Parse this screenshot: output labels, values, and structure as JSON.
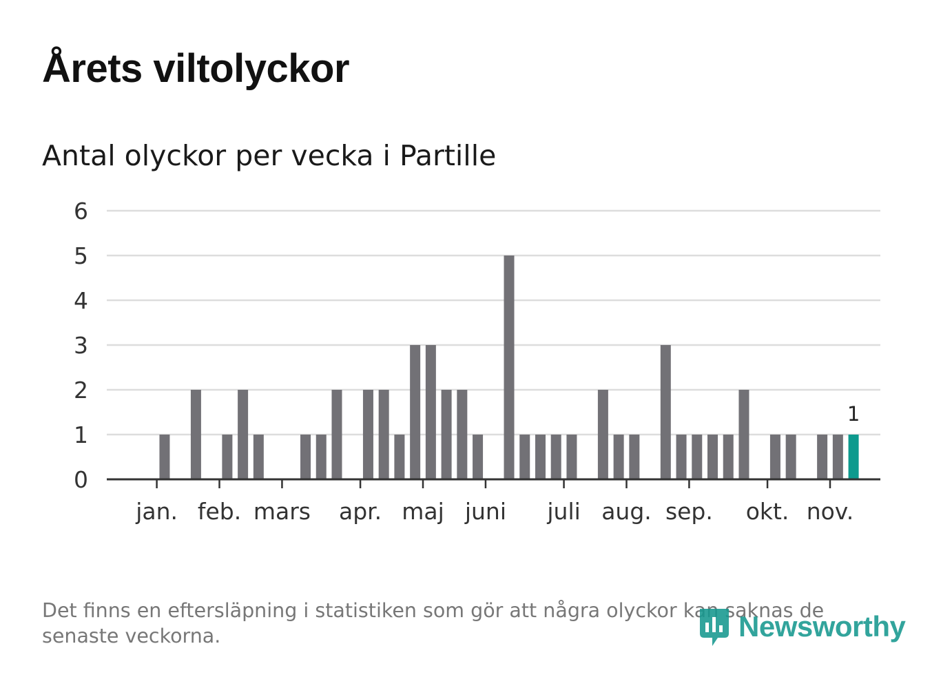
{
  "title": "Årets viltolyckor",
  "subtitle": "Antal olyckor per vecka i Partille",
  "footnote": "Det finns en eftersläpning i statistiken som gör att några olyckor kan saknas de senaste veckorna.",
  "brand": {
    "name": "Newsworthy",
    "icon": "newsworthy-logo-icon",
    "color": "#16988f"
  },
  "colors": {
    "bar": "#727176",
    "highlight": "#0d9a8e",
    "grid": "#dddddd",
    "axis": "#333333"
  },
  "chart_data": {
    "type": "bar",
    "title": "Antal olyckor per vecka i Partille",
    "xlabel": "",
    "ylabel": "",
    "ylim": [
      0,
      6
    ],
    "yticks": [
      0,
      1,
      2,
      3,
      4,
      5,
      6
    ],
    "grid": true,
    "first_week": 1,
    "values": [
      0,
      1,
      0,
      2,
      0,
      1,
      2,
      1,
      0,
      0,
      1,
      1,
      2,
      0,
      2,
      2,
      1,
      3,
      3,
      2,
      2,
      1,
      0,
      5,
      1,
      1,
      1,
      1,
      0,
      2,
      1,
      1,
      0,
      3,
      1,
      1,
      1,
      1,
      2,
      0,
      1,
      1,
      0,
      1,
      1,
      1
    ],
    "highlight_index": 45,
    "highlight_label": "1",
    "month_ticks": [
      {
        "label": "jan.",
        "week": 1.5
      },
      {
        "label": "feb.",
        "week": 5.5
      },
      {
        "label": "mars",
        "week": 9.5
      },
      {
        "label": "apr.",
        "week": 14.5
      },
      {
        "label": "maj",
        "week": 18.5
      },
      {
        "label": "juni",
        "week": 22.5
      },
      {
        "label": "juli",
        "week": 27.5
      },
      {
        "label": "aug.",
        "week": 31.5
      },
      {
        "label": "sep.",
        "week": 35.5
      },
      {
        "label": "okt.",
        "week": 40.5
      },
      {
        "label": "nov.",
        "week": 44.5
      }
    ]
  }
}
